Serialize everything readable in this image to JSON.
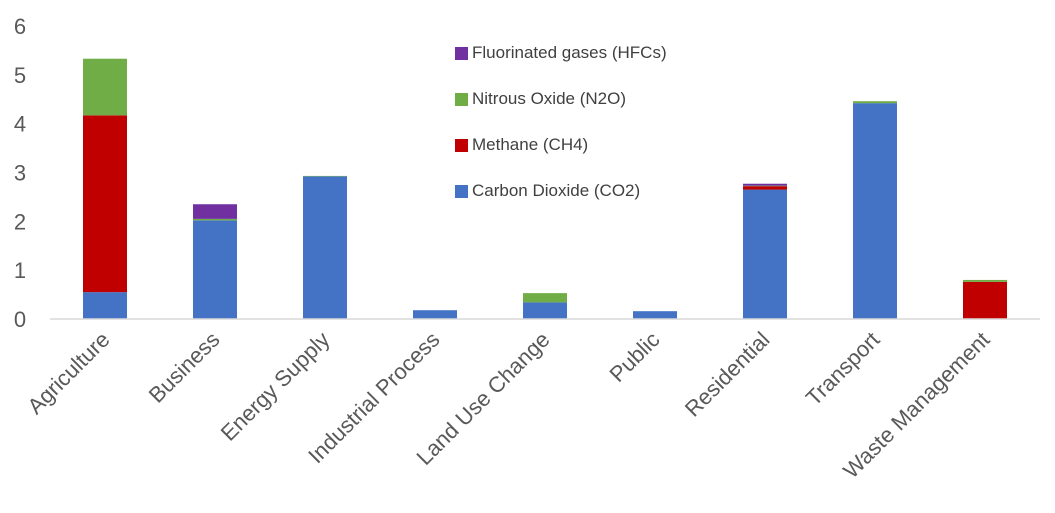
{
  "chart_data": {
    "type": "bar",
    "stacked": true,
    "categories": [
      "Agriculture",
      "Business",
      "Energy Supply",
      "Industrial Process",
      "Land Use Change",
      "Public",
      "Residential",
      "Transport",
      "Waste Management"
    ],
    "series": [
      {
        "name": "Carbon Dioxide (CO2)",
        "color": "#4472C4",
        "values": [
          0.55,
          2.02,
          2.92,
          0.18,
          0.34,
          0.16,
          2.65,
          4.42,
          0.0
        ]
      },
      {
        "name": "Methane (CH4)",
        "color": "#C00000",
        "values": [
          3.62,
          0.0,
          0.0,
          0.0,
          0.0,
          0.0,
          0.07,
          0.0,
          0.76
        ]
      },
      {
        "name": "Nitrous Oxide (N2O)",
        "color": "#70AD47",
        "values": [
          1.16,
          0.03,
          0.01,
          0.0,
          0.19,
          0.0,
          0.01,
          0.04,
          0.04
        ]
      },
      {
        "name": "Fluorinated gases (HFCs)",
        "color": "#7030A0",
        "values": [
          0.0,
          0.3,
          0.0,
          0.0,
          0.0,
          0.0,
          0.04,
          0.0,
          0.0
        ]
      }
    ],
    "legend_order": [
      "Fluorinated gases (HFCs)",
      "Nitrous Oxide (N2O)",
      "Methane (CH4)",
      "Carbon Dioxide (CO2)"
    ],
    "ylim": [
      0,
      6
    ],
    "yticks": [
      0,
      1,
      2,
      3,
      4,
      5,
      6
    ],
    "title": "",
    "xlabel": "",
    "ylabel": "",
    "grid": false,
    "legend_position": "top-center"
  }
}
